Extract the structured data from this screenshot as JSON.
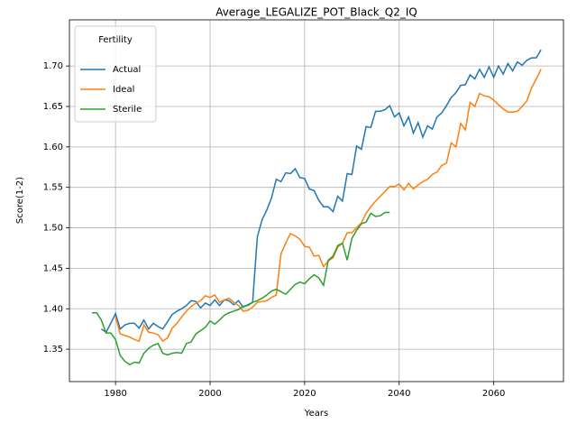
{
  "chart_data": {
    "type": "line",
    "title": "Average_LEGALIZE_POT_Black_Q2_IQ",
    "x_label": "Years",
    "y_label": "Score(1-2)",
    "legend_title": "Fertility",
    "legend_position": "upper left",
    "grid": true,
    "xlim": [
      1970.25,
      2074.75
    ],
    "ylim": [
      1.31,
      1.757
    ],
    "xticks": [
      1980,
      2000,
      2020,
      2040,
      2060
    ],
    "yticks": [
      1.35,
      {
        "value": 1.4,
        "label": "1.40"
      },
      1.45,
      {
        "value": 1.5,
        "label": "1.50"
      },
      1.55,
      {
        "value": 1.6,
        "label": "1.60"
      },
      1.65,
      {
        "value": 1.7,
        "label": "1.70"
      }
    ],
    "x": [
      1975,
      1976,
      1977,
      1978,
      1979,
      1980,
      1981,
      1982,
      1983,
      1984,
      1985,
      1986,
      1987,
      1988,
      1989,
      1990,
      1991,
      1992,
      1993,
      1994,
      1995,
      1996,
      1997,
      1998,
      1999,
      2000,
      2001,
      2002,
      2003,
      2004,
      2005,
      2006,
      2007,
      2008,
      2009,
      2010,
      2011,
      2012,
      2013,
      2014,
      2015,
      2016,
      2017,
      2018,
      2019,
      2020,
      2021,
      2022,
      2023,
      2024,
      2025,
      2026,
      2027,
      2028,
      2029,
      2030,
      2031,
      2032,
      2033,
      2034,
      2035,
      2036,
      2037,
      2038,
      2039,
      2040,
      2041,
      2042,
      2043,
      2044,
      2045,
      2046,
      2047,
      2048,
      2049,
      2050,
      2051,
      2052,
      2053,
      2054,
      2055,
      2056,
      2057,
      2058,
      2059,
      2060,
      2061,
      2062,
      2063,
      2064,
      2065,
      2066,
      2067,
      2068,
      2069,
      2070
    ],
    "series": [
      {
        "name": "Actual",
        "color": "#1f77b4",
        "values": [
          null,
          null,
          1.375,
          1.371,
          1.382,
          1.394,
          1.375,
          1.38,
          1.382,
          1.382,
          1.376,
          1.386,
          1.375,
          1.382,
          1.378,
          1.375,
          1.384,
          1.393,
          1.397,
          1.4,
          1.404,
          1.41,
          1.409,
          1.401,
          1.407,
          1.404,
          1.411,
          1.404,
          1.411,
          1.41,
          1.405,
          1.41,
          1.402,
          1.405,
          1.408,
          1.489,
          1.51,
          1.522,
          1.537,
          1.56,
          1.557,
          1.568,
          1.567,
          1.573,
          1.562,
          1.561,
          1.548,
          1.546,
          1.534,
          1.526,
          1.526,
          1.52,
          1.539,
          1.533,
          1.567,
          1.566,
          1.601,
          1.597,
          1.625,
          1.624,
          1.644,
          1.644,
          1.646,
          1.651,
          1.637,
          1.642,
          1.626,
          1.637,
          1.617,
          1.63,
          1.612,
          1.626,
          1.622,
          1.637,
          1.642,
          1.651,
          1.661,
          1.667,
          1.676,
          1.677,
          1.689,
          1.684,
          1.696,
          1.686,
          1.699,
          1.686,
          1.7,
          1.69,
          1.703,
          1.694,
          1.705,
          1.701,
          1.707,
          1.71,
          1.71,
          1.72
        ]
      },
      {
        "name": "Ideal",
        "color": "#ff7f0e",
        "values": [
          null,
          null,
          null,
          null,
          null,
          1.39,
          1.369,
          1.367,
          1.365,
          1.362,
          1.36,
          1.38,
          1.371,
          1.37,
          1.368,
          1.36,
          1.364,
          1.376,
          1.382,
          1.39,
          1.397,
          1.403,
          1.407,
          1.41,
          1.416,
          1.414,
          1.417,
          1.408,
          1.411,
          1.413,
          1.408,
          1.404,
          1.397,
          1.398,
          1.402,
          1.408,
          1.409,
          1.41,
          1.414,
          1.417,
          1.468,
          1.481,
          1.493,
          1.49,
          1.486,
          1.477,
          1.476,
          1.465,
          1.466,
          1.452,
          1.459,
          1.463,
          1.476,
          1.481,
          1.494,
          1.494,
          1.5,
          1.506,
          1.518,
          1.526,
          1.533,
          1.539,
          1.545,
          1.551,
          1.551,
          1.554,
          1.547,
          1.555,
          1.548,
          1.553,
          1.557,
          1.56,
          1.566,
          1.569,
          1.577,
          1.58,
          1.605,
          1.6,
          1.629,
          1.621,
          1.655,
          1.65,
          1.666,
          1.663,
          1.662,
          1.658,
          1.652,
          1.647,
          1.643,
          1.643,
          1.644,
          1.65,
          1.657,
          1.673,
          1.684,
          1.696
        ]
      },
      {
        "name": "Sterile",
        "color": "#2ca02c",
        "values": [
          1.395,
          1.395,
          1.386,
          1.37,
          1.37,
          1.362,
          1.342,
          1.335,
          1.331,
          1.334,
          1.333,
          1.345,
          1.351,
          1.355,
          1.357,
          1.345,
          1.343,
          1.345,
          1.346,
          1.345,
          1.357,
          1.359,
          1.369,
          1.373,
          1.377,
          1.385,
          1.381,
          1.386,
          1.392,
          1.395,
          1.397,
          1.399,
          1.403,
          1.404,
          1.408,
          1.41,
          1.413,
          1.417,
          1.422,
          1.424,
          1.421,
          1.418,
          1.424,
          1.43,
          1.433,
          1.431,
          1.437,
          1.442,
          1.438,
          1.429,
          1.46,
          1.465,
          1.478,
          1.481,
          1.46,
          1.487,
          1.497,
          1.505,
          1.507,
          1.518,
          1.514,
          1.515,
          1.519,
          1.519,
          null,
          null,
          null,
          null,
          null,
          null,
          null,
          null,
          null,
          null,
          null,
          null,
          null,
          null,
          null,
          null,
          null,
          null,
          null,
          null,
          null,
          null,
          null,
          null,
          null,
          null,
          null,
          null,
          null,
          null,
          null,
          null
        ]
      }
    ]
  }
}
